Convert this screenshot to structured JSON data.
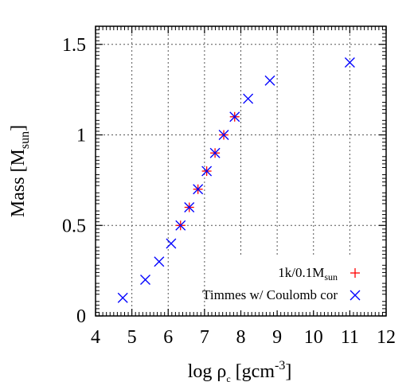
{
  "chart_data": {
    "type": "scatter",
    "xlabel": {
      "prefix": "log ρ",
      "sub": "c",
      "mid": " [gcm",
      "sup": "-3",
      "suffix": "]"
    },
    "ylabel": {
      "prefix": "Mass [M",
      "sub": "sun",
      "suffix": "]"
    },
    "xlim": [
      4,
      12
    ],
    "ylim": [
      0,
      1.6
    ],
    "x_ticks": [
      4,
      5,
      6,
      7,
      8,
      9,
      10,
      11,
      12
    ],
    "x_tick_labels": [
      "4",
      "5",
      "6",
      "7",
      "8",
      "9",
      "10",
      "11",
      "12"
    ],
    "y_ticks": [
      0,
      0.5,
      1,
      1.5
    ],
    "y_tick_labels": [
      "0",
      "0.5",
      "1",
      "1.5"
    ],
    "grid": true,
    "legend_position": "bottom-right",
    "series": [
      {
        "legend": {
          "prefix": "1k/0.1M",
          "sub": "sun"
        },
        "marker": "plus",
        "color": "#ff0000",
        "points": [
          [
            6.34,
            0.5
          ],
          [
            6.58,
            0.6
          ],
          [
            6.82,
            0.7
          ],
          [
            7.06,
            0.8
          ],
          [
            7.29,
            0.9
          ],
          [
            7.53,
            1.0
          ],
          [
            7.83,
            1.1
          ]
        ]
      },
      {
        "legend": {
          "prefix": "Timmes w/ Coulomb cor"
        },
        "marker": "cross",
        "color": "#0000ff",
        "points": [
          [
            4.75,
            0.1
          ],
          [
            5.37,
            0.2
          ],
          [
            5.75,
            0.3
          ],
          [
            6.08,
            0.4
          ],
          [
            6.34,
            0.5
          ],
          [
            6.58,
            0.6
          ],
          [
            6.82,
            0.7
          ],
          [
            7.06,
            0.8
          ],
          [
            7.29,
            0.9
          ],
          [
            7.53,
            1.0
          ],
          [
            7.83,
            1.1
          ],
          [
            8.2,
            1.2
          ],
          [
            8.8,
            1.3
          ],
          [
            11.0,
            1.4
          ]
        ]
      }
    ]
  }
}
